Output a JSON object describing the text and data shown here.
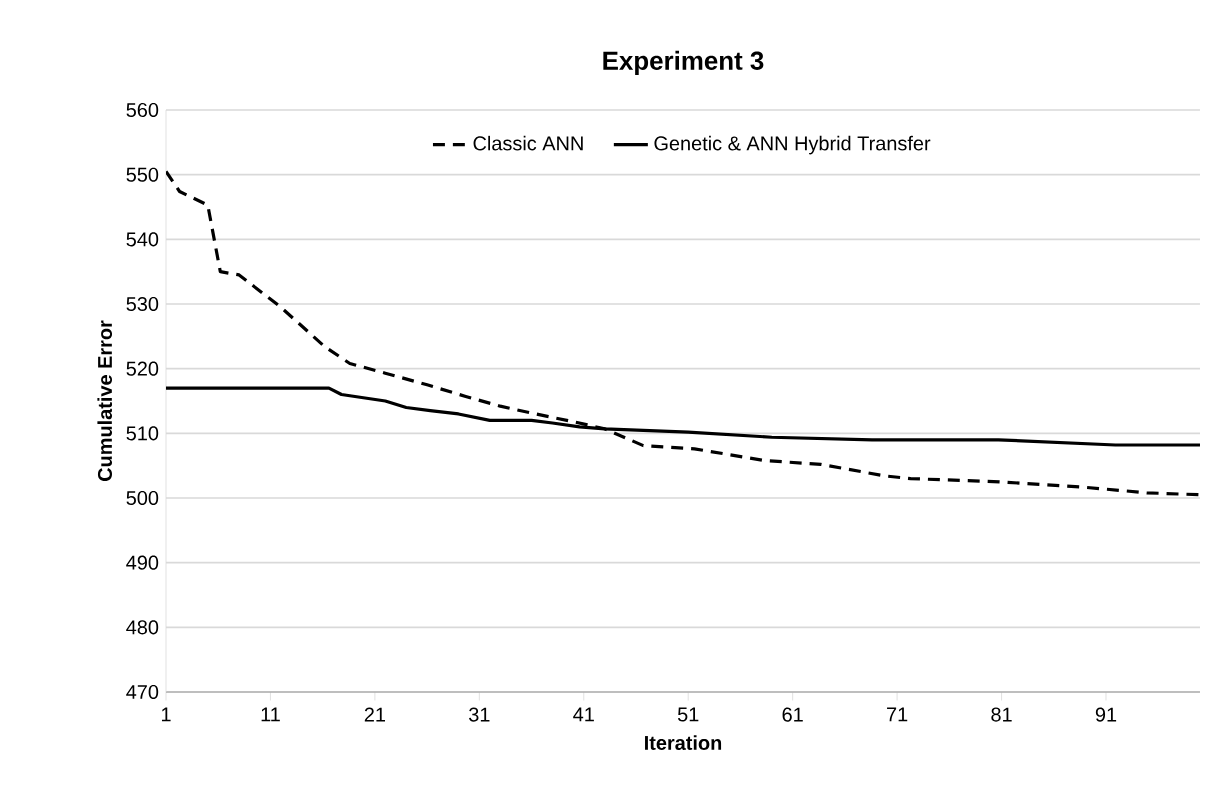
{
  "chart_data": {
    "type": "line",
    "title": "Experiment 3",
    "xlabel": "Iteration",
    "ylabel": "Cumulative Error",
    "xlim": [
      1,
      100
    ],
    "xticks": [
      1,
      11,
      21,
      31,
      41,
      51,
      61,
      71,
      81,
      91
    ],
    "ylim": [
      470,
      560
    ],
    "yticks": [
      470,
      480,
      490,
      500,
      510,
      520,
      530,
      540,
      550,
      560
    ],
    "grid": "y",
    "legend": "top",
    "marker": "none",
    "series": [
      {
        "name": "Classic ANN",
        "color": "#000000",
        "line_style": "dashed",
        "x": [
          1,
          2.3,
          5,
          6.2,
          8,
          12,
          16.2,
          18.6,
          22,
          26,
          29.7,
          33,
          35.8,
          40,
          43,
          46.7,
          51.6,
          58.3,
          63.7,
          69.9,
          72.3,
          80.8,
          88.7,
          94.9,
          100
        ],
        "values": [
          550.5,
          547.4,
          545.3,
          535,
          534.5,
          529.5,
          523.4,
          520.8,
          519.3,
          517.5,
          515.7,
          514.2,
          513.2,
          511.8,
          510.7,
          508.1,
          507.6,
          505.8,
          505.2,
          503.4,
          503,
          502.5,
          501.7,
          500.8,
          500.5
        ]
      },
      {
        "name": "Genetic & ANN Hybrid Transfer",
        "color": "#000000",
        "line_style": "solid",
        "x": [
          1,
          16.6,
          17.8,
          22,
          24,
          26.3,
          29,
          32,
          36,
          38,
          40.6,
          43,
          51,
          59,
          68.6,
          80.7,
          91.9,
          100
        ],
        "values": [
          517,
          517,
          516,
          515,
          514,
          513.5,
          513,
          512,
          512,
          511.6,
          511,
          510.7,
          510.2,
          509.4,
          509,
          509,
          508.2,
          508.2
        ]
      }
    ]
  }
}
